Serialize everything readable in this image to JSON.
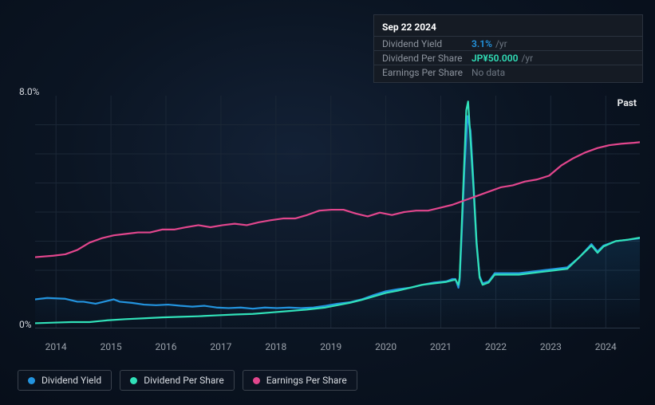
{
  "tooltip": {
    "date": "Sep 22 2024",
    "rows": [
      {
        "label": "Dividend Yield",
        "value": "3.1%",
        "unit": "/yr",
        "color": "blue"
      },
      {
        "label": "Dividend Per Share",
        "value": "JP¥50.000",
        "unit": "/yr",
        "color": "teal"
      },
      {
        "label": "Earnings Per Share",
        "value": null,
        "nodata": "No data"
      }
    ]
  },
  "chart": {
    "y_max_label": "8.0%",
    "y_min_label": "0%",
    "past_label": "Past",
    "ylim": [
      0,
      8
    ],
    "background": "#0b1523",
    "grid_color": "#1b2736",
    "xticks": [
      "2014",
      "2015",
      "2016",
      "2017",
      "2018",
      "2019",
      "2020",
      "2021",
      "2022",
      "2023",
      "2024"
    ],
    "series": [
      {
        "key": "dividend_yield",
        "label": "Dividend Yield",
        "color": "#2394df",
        "width": 2.2,
        "has_area": true,
        "area_opacity_top": 0.35,
        "data": [
          [
            0.0,
            1.0
          ],
          [
            0.02,
            1.05
          ],
          [
            0.05,
            1.02
          ],
          [
            0.07,
            0.92
          ],
          [
            0.08,
            0.92
          ],
          [
            0.1,
            0.85
          ],
          [
            0.12,
            0.95
          ],
          [
            0.13,
            1.0
          ],
          [
            0.14,
            0.92
          ],
          [
            0.16,
            0.88
          ],
          [
            0.18,
            0.82
          ],
          [
            0.2,
            0.8
          ],
          [
            0.22,
            0.82
          ],
          [
            0.24,
            0.78
          ],
          [
            0.26,
            0.75
          ],
          [
            0.28,
            0.78
          ],
          [
            0.3,
            0.72
          ],
          [
            0.32,
            0.7
          ],
          [
            0.34,
            0.72
          ],
          [
            0.36,
            0.68
          ],
          [
            0.38,
            0.72
          ],
          [
            0.4,
            0.7
          ],
          [
            0.42,
            0.72
          ],
          [
            0.44,
            0.7
          ],
          [
            0.46,
            0.72
          ],
          [
            0.48,
            0.78
          ],
          [
            0.5,
            0.85
          ],
          [
            0.52,
            0.9
          ],
          [
            0.54,
            1.0
          ],
          [
            0.56,
            1.15
          ],
          [
            0.58,
            1.28
          ],
          [
            0.6,
            1.35
          ],
          [
            0.62,
            1.4
          ],
          [
            0.64,
            1.5
          ],
          [
            0.66,
            1.58
          ],
          [
            0.68,
            1.62
          ],
          [
            0.69,
            1.7
          ],
          [
            0.695,
            1.7
          ],
          [
            0.7,
            1.4
          ],
          [
            0.702,
            1.65
          ],
          [
            0.705,
            3.0
          ],
          [
            0.71,
            5.5
          ],
          [
            0.715,
            7.3
          ],
          [
            0.72,
            6.8
          ],
          [
            0.725,
            5.0
          ],
          [
            0.73,
            3.0
          ],
          [
            0.735,
            1.8
          ],
          [
            0.74,
            1.55
          ],
          [
            0.75,
            1.62
          ],
          [
            0.76,
            1.9
          ],
          [
            0.77,
            1.9
          ],
          [
            0.78,
            1.9
          ],
          [
            0.8,
            1.9
          ],
          [
            0.82,
            1.95
          ],
          [
            0.84,
            2.0
          ],
          [
            0.86,
            2.05
          ],
          [
            0.88,
            2.1
          ],
          [
            0.9,
            2.45
          ],
          [
            0.92,
            2.9
          ],
          [
            0.93,
            2.65
          ],
          [
            0.94,
            2.85
          ],
          [
            0.96,
            3.0
          ],
          [
            0.98,
            3.05
          ],
          [
            1.0,
            3.1
          ]
        ]
      },
      {
        "key": "dividend_per_share",
        "label": "Dividend Per Share",
        "color": "#31e1b9",
        "width": 2.2,
        "data": [
          [
            0.0,
            0.18
          ],
          [
            0.03,
            0.2
          ],
          [
            0.06,
            0.22
          ],
          [
            0.09,
            0.22
          ],
          [
            0.12,
            0.28
          ],
          [
            0.15,
            0.32
          ],
          [
            0.18,
            0.35
          ],
          [
            0.21,
            0.38
          ],
          [
            0.24,
            0.4
          ],
          [
            0.27,
            0.42
          ],
          [
            0.3,
            0.45
          ],
          [
            0.33,
            0.48
          ],
          [
            0.36,
            0.5
          ],
          [
            0.39,
            0.55
          ],
          [
            0.42,
            0.6
          ],
          [
            0.45,
            0.65
          ],
          [
            0.48,
            0.72
          ],
          [
            0.5,
            0.8
          ],
          [
            0.52,
            0.88
          ],
          [
            0.54,
            0.98
          ],
          [
            0.56,
            1.1
          ],
          [
            0.58,
            1.22
          ],
          [
            0.6,
            1.3
          ],
          [
            0.62,
            1.4
          ],
          [
            0.64,
            1.5
          ],
          [
            0.66,
            1.55
          ],
          [
            0.68,
            1.6
          ],
          [
            0.695,
            1.68
          ],
          [
            0.7,
            1.5
          ],
          [
            0.702,
            1.75
          ],
          [
            0.705,
            3.3
          ],
          [
            0.71,
            5.9
          ],
          [
            0.713,
            7.5
          ],
          [
            0.716,
            7.8
          ],
          [
            0.72,
            6.5
          ],
          [
            0.725,
            4.8
          ],
          [
            0.73,
            2.9
          ],
          [
            0.735,
            1.75
          ],
          [
            0.74,
            1.5
          ],
          [
            0.75,
            1.58
          ],
          [
            0.76,
            1.85
          ],
          [
            0.78,
            1.85
          ],
          [
            0.8,
            1.85
          ],
          [
            0.82,
            1.9
          ],
          [
            0.84,
            1.95
          ],
          [
            0.86,
            2.0
          ],
          [
            0.88,
            2.05
          ],
          [
            0.9,
            2.45
          ],
          [
            0.92,
            2.85
          ],
          [
            0.93,
            2.6
          ],
          [
            0.94,
            2.82
          ],
          [
            0.96,
            3.0
          ],
          [
            0.98,
            3.05
          ],
          [
            1.0,
            3.12
          ]
        ]
      },
      {
        "key": "earnings_per_share",
        "label": "Earnings Per Share",
        "color": "#e2468d",
        "width": 2.2,
        "data": [
          [
            0.0,
            2.45
          ],
          [
            0.03,
            2.5
          ],
          [
            0.05,
            2.55
          ],
          [
            0.07,
            2.7
          ],
          [
            0.09,
            2.95
          ],
          [
            0.11,
            3.1
          ],
          [
            0.13,
            3.2
          ],
          [
            0.15,
            3.25
          ],
          [
            0.17,
            3.3
          ],
          [
            0.19,
            3.3
          ],
          [
            0.21,
            3.4
          ],
          [
            0.23,
            3.4
          ],
          [
            0.25,
            3.48
          ],
          [
            0.27,
            3.55
          ],
          [
            0.29,
            3.48
          ],
          [
            0.31,
            3.55
          ],
          [
            0.33,
            3.6
          ],
          [
            0.35,
            3.55
          ],
          [
            0.37,
            3.65
          ],
          [
            0.39,
            3.72
          ],
          [
            0.41,
            3.78
          ],
          [
            0.43,
            3.78
          ],
          [
            0.45,
            3.9
          ],
          [
            0.47,
            4.05
          ],
          [
            0.49,
            4.08
          ],
          [
            0.51,
            4.08
          ],
          [
            0.53,
            3.95
          ],
          [
            0.55,
            3.85
          ],
          [
            0.57,
            3.98
          ],
          [
            0.59,
            3.9
          ],
          [
            0.61,
            4.0
          ],
          [
            0.63,
            4.05
          ],
          [
            0.65,
            4.05
          ],
          [
            0.67,
            4.15
          ],
          [
            0.69,
            4.25
          ],
          [
            0.71,
            4.4
          ],
          [
            0.73,
            4.55
          ],
          [
            0.75,
            4.7
          ],
          [
            0.77,
            4.85
          ],
          [
            0.79,
            4.92
          ],
          [
            0.81,
            5.05
          ],
          [
            0.83,
            5.12
          ],
          [
            0.85,
            5.25
          ],
          [
            0.87,
            5.6
          ],
          [
            0.89,
            5.85
          ],
          [
            0.91,
            6.05
          ],
          [
            0.93,
            6.2
          ],
          [
            0.95,
            6.3
          ],
          [
            0.97,
            6.35
          ],
          [
            0.99,
            6.38
          ],
          [
            1.0,
            6.4
          ]
        ]
      }
    ]
  },
  "legend": {
    "items": [
      {
        "label": "Dividend Yield",
        "color": "#2394df"
      },
      {
        "label": "Dividend Per Share",
        "color": "#31e1b9"
      },
      {
        "label": "Earnings Per Share",
        "color": "#e2468d"
      }
    ]
  }
}
